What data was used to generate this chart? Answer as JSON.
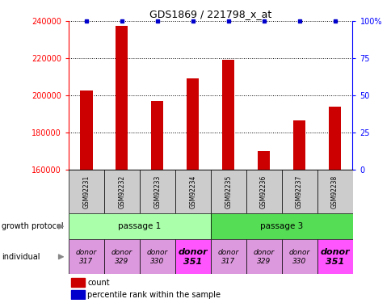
{
  "title": "GDS1869 / 221798_x_at",
  "samples": [
    "GSM92231",
    "GSM92232",
    "GSM92233",
    "GSM92234",
    "GSM92235",
    "GSM92236",
    "GSM92237",
    "GSM92238"
  ],
  "counts": [
    202500,
    237500,
    197000,
    209000,
    219000,
    170000,
    186500,
    194000
  ],
  "percentiles": [
    100,
    100,
    100,
    100,
    100,
    100,
    100,
    100
  ],
  "ylim_left": [
    160000,
    240000
  ],
  "ylim_right": [
    0,
    100
  ],
  "yticks_left": [
    160000,
    180000,
    200000,
    220000,
    240000
  ],
  "yticks_right": [
    0,
    25,
    50,
    75,
    100
  ],
  "bar_color": "#cc0000",
  "dot_color": "#0000cc",
  "passage1_color": "#aaffaa",
  "passage3_color": "#55dd55",
  "passage1_label": "passage 1",
  "passage3_label": "passage 3",
  "donor_light_color": "#dd99dd",
  "donor_bright_color": "#ff55ff",
  "growth_protocol_label": "growth protocol",
  "individual_label": "individual",
  "donor_labels": [
    "donor\n317",
    "donor\n329",
    "donor\n330",
    "donor\n351"
  ],
  "legend_count": "count",
  "legend_percentile": "percentile rank within the sample",
  "sample_header_color": "#cccccc",
  "bar_width": 0.35
}
